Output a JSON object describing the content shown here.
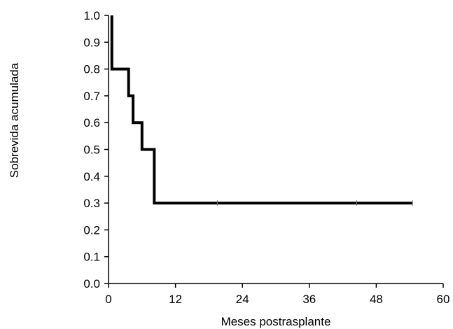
{
  "chart_data": {
    "type": "line",
    "title": "",
    "xlabel": "Meses postrasplante",
    "ylabel": "Sobrevida acumulada",
    "xlim": [
      0,
      60
    ],
    "ylim": [
      0,
      1.0
    ],
    "x_ticks": [
      0,
      12,
      24,
      36,
      48,
      60
    ],
    "x_tick_labels": [
      "0",
      "12",
      "24",
      "36",
      "48",
      "60"
    ],
    "y_ticks": [
      0,
      0.1,
      0.2,
      0.3,
      0.4,
      0.5,
      0.6,
      0.7,
      0.8,
      0.9,
      1.0
    ],
    "y_tick_labels": [
      "0.0",
      "0.1",
      "0.2",
      "0.3",
      "0.4",
      "0.5",
      "0.6",
      "0.7",
      "0.8",
      "0.9",
      "1.0"
    ],
    "grid": false,
    "legend": "none",
    "series": [
      {
        "style": "step",
        "color": "#000000",
        "x": [
          0.6,
          0.6,
          3.6,
          3.6,
          4.4,
          4.4,
          6.0,
          6.0,
          8.2,
          8.2,
          54.5
        ],
        "y": [
          1.0,
          0.8,
          0.8,
          0.7,
          0.7,
          0.6,
          0.6,
          0.5,
          0.5,
          0.3,
          0.3
        ],
        "censored": [
          {
            "x": 19.5,
            "y": 0.3
          },
          {
            "x": 44.5,
            "y": 0.3
          },
          {
            "x": 54.5,
            "y": 0.3
          }
        ]
      }
    ]
  }
}
